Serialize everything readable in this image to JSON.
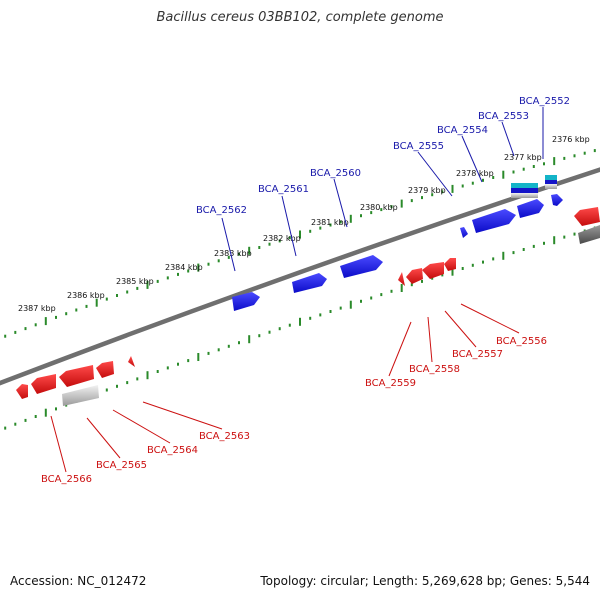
{
  "title": "Bacillus cereus 03BB102, complete genome",
  "footer": {
    "accession": "Accession: NC_012472",
    "topology": "Topology: circular; Length: 5,269,628 bp; Genes: 5,544"
  },
  "colors": {
    "forward_gene": "#1a1aee",
    "reverse_gene": "#e01515",
    "tick": "#2a8a2a",
    "backbone": "#777777",
    "forward_label": "#1a1aaa",
    "reverse_label": "#cc1111"
  },
  "scale_labels": [
    "2387 kbp",
    "2386 kbp",
    "2385 kbp",
    "2384 kbp",
    "2383 kbp",
    "2382 kbp",
    "2381 kbp",
    "2380 kbp",
    "2379 kbp",
    "2378 kbp",
    "2377 kbp",
    "2376 kbp"
  ],
  "forward_genes": [
    "BCA_2562",
    "BCA_2561",
    "BCA_2560",
    "BCA_2555",
    "BCA_2554",
    "BCA_2553",
    "BCA_2552"
  ],
  "reverse_genes": [
    "BCA_2566",
    "BCA_2565",
    "BCA_2564",
    "BCA_2563",
    "BCA_2559",
    "BCA_2558",
    "BCA_2557",
    "BCA_2556"
  ]
}
